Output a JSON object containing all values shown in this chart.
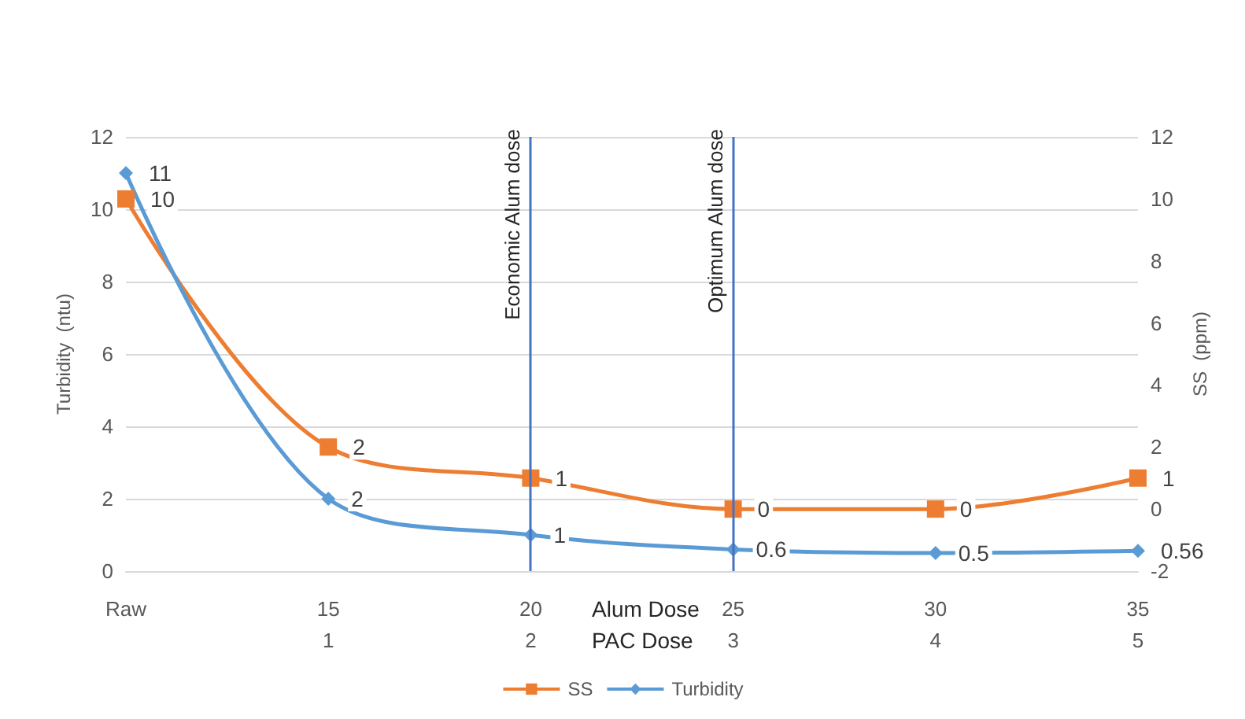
{
  "chart_data": {
    "type": "line",
    "categories": [
      "Raw",
      "15\n1",
      "20\n2",
      "25\n3",
      "30\n4",
      "35\n5"
    ],
    "xlabel": "Alum Dose\nPAC Dose",
    "ylabel": "Turbidity  (ntu)",
    "y2label": "SS  (ppm)",
    "series": [
      {
        "name": "SS",
        "color": "#ed7d31",
        "values": [
          10,
          2,
          1,
          0,
          0,
          1
        ],
        "axis": "y2",
        "marker": "square"
      },
      {
        "name": "Turbidity",
        "color": "#5b9bd5",
        "values": [
          11,
          2,
          1,
          0.6,
          0.5,
          0.56
        ],
        "marker": "diamond"
      }
    ],
    "ylim": [
      0,
      12
    ],
    "yticks": [
      0,
      2,
      4,
      6,
      8,
      10,
      12
    ],
    "y2lim": [
      -2,
      12
    ],
    "y2ticks": [
      -2,
      0,
      2,
      4,
      6,
      8,
      10,
      12
    ],
    "ref_lines": [
      {
        "axis": "x",
        "value": "20\n2",
        "label": "Economic Alum dose",
        "color": "#4472c4"
      },
      {
        "axis": "x",
        "value": "25\n3",
        "label": "Optimum Alum dose",
        "color": "#4472c4"
      }
    ],
    "data_labels": true,
    "grid": "y",
    "legend": "bottom"
  }
}
